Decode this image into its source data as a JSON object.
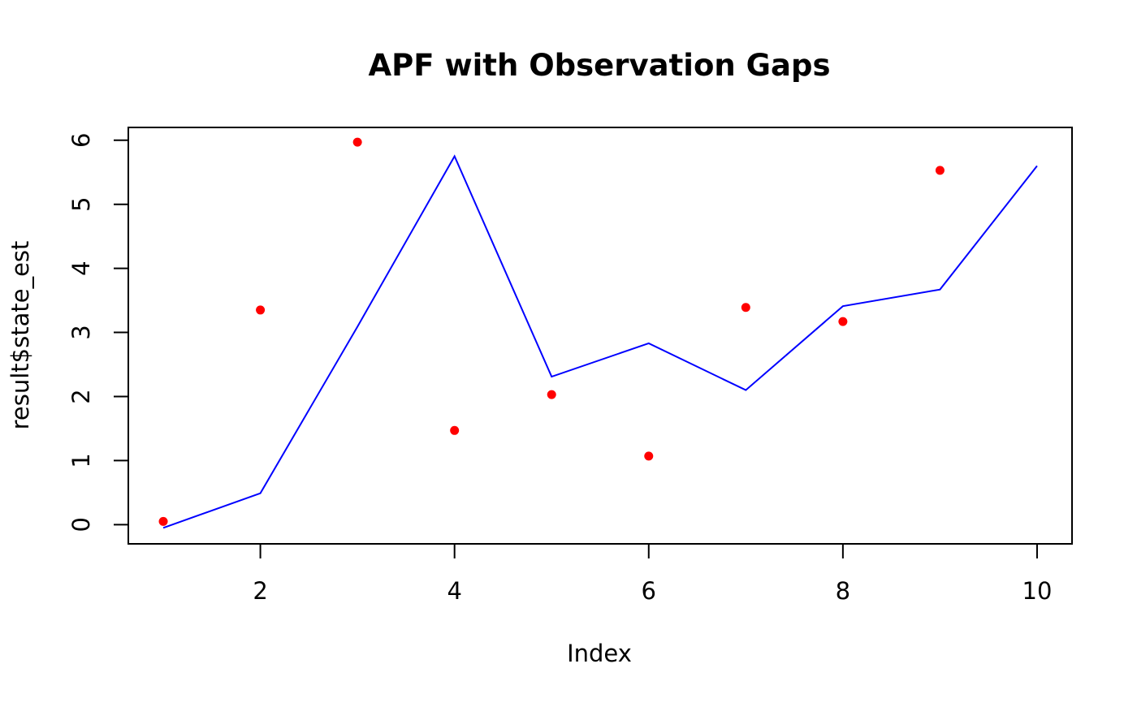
{
  "chart_data": {
    "type": "line",
    "title": "APF with Observation Gaps",
    "xlabel": "Index",
    "ylabel": "result$state_est",
    "xlim": [
      0.64,
      10.36
    ],
    "ylim": [
      -0.3,
      6.2
    ],
    "grid": false,
    "x_ticks": [
      2,
      4,
      6,
      8,
      10
    ],
    "y_ticks": [
      0,
      1,
      2,
      3,
      4,
      5,
      6
    ],
    "x": [
      1,
      2,
      3,
      4,
      5,
      6,
      7,
      8,
      9,
      10
    ],
    "series": [
      {
        "kind": "line",
        "color": "#0000ff",
        "values": [
          -0.05,
          0.49,
          3.09,
          5.75,
          2.31,
          2.83,
          2.1,
          3.41,
          3.67,
          5.6
        ]
      },
      {
        "kind": "points",
        "color": "#ff0000",
        "values": [
          0.05,
          3.35,
          5.97,
          1.47,
          2.03,
          null,
          3.39,
          3.17,
          5.53,
          null
        ]
      },
      {
        "kind": "points",
        "color": "#ff0000",
        "values": [
          null,
          null,
          null,
          null,
          null,
          1.07,
          null,
          null,
          null,
          null
        ]
      }
    ]
  }
}
